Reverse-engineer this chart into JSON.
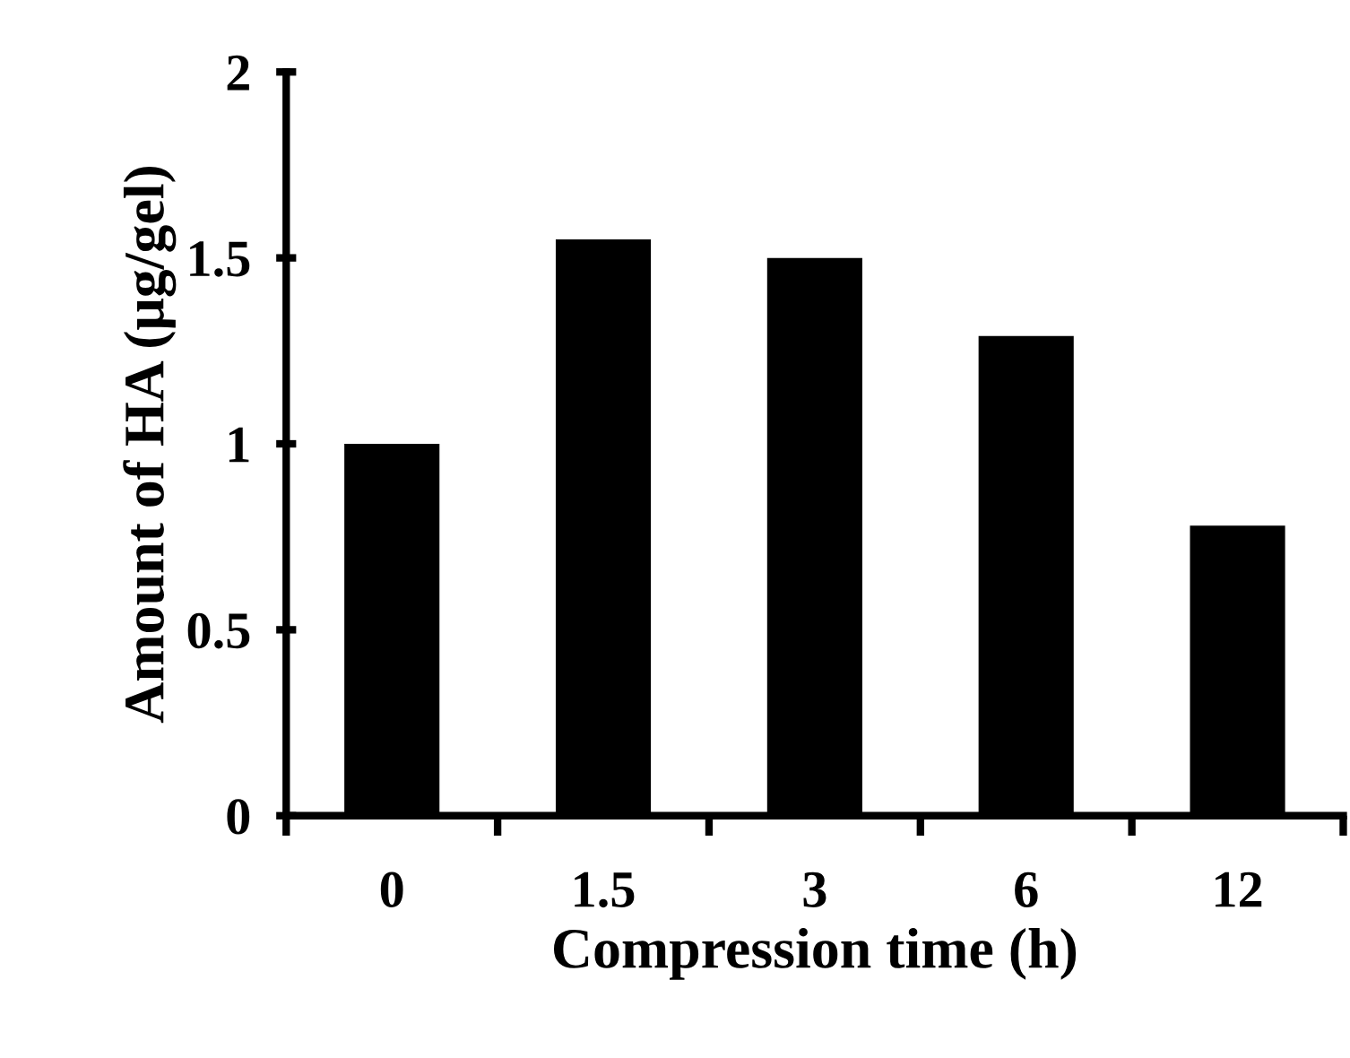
{
  "chart_data": {
    "type": "bar",
    "xlabel": "Compression time (h)",
    "ylabel": "Amount of HA (μg/gel)",
    "categories": [
      "0",
      "1.5",
      "3",
      "6",
      "12"
    ],
    "values": [
      1.0,
      1.55,
      1.5,
      1.29,
      0.78
    ],
    "color": "#000000",
    "ylim": [
      0,
      2
    ],
    "yticks": [
      0,
      0.5,
      1,
      1.5,
      2
    ],
    "grid": false,
    "legend": false
  }
}
